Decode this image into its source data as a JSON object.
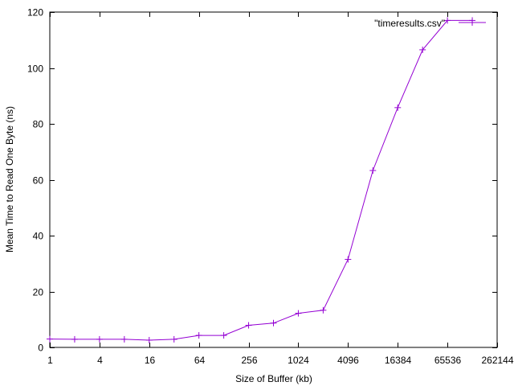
{
  "chart_data": {
    "type": "line",
    "title": "",
    "xlabel": "Size of Buffer (kb)",
    "ylabel": "Mean Time to Read One Byte (ns)",
    "xscale": "log2",
    "xlim": [
      1,
      262144
    ],
    "ylim": [
      0,
      120
    ],
    "grid": false,
    "legend_position": "top-right",
    "x_ticks": [
      1,
      4,
      16,
      64,
      256,
      1024,
      4096,
      16384,
      65536,
      262144
    ],
    "x_tick_labels": [
      "1",
      "4",
      "16",
      "64",
      "256",
      "1024",
      "4096",
      "16384",
      "65536",
      "262144"
    ],
    "y_ticks": [
      0,
      20,
      40,
      60,
      80,
      100,
      120
    ],
    "y_tick_labels": [
      "0",
      "20",
      "40",
      "60",
      "80",
      "100",
      "120"
    ],
    "series": [
      {
        "name": "\"timeresults.csv\"",
        "color": "#9400d3",
        "marker": "plus",
        "x": [
          1,
          2,
          4,
          8,
          16,
          32,
          64,
          128,
          256,
          512,
          1024,
          2048,
          4096,
          8192,
          16384,
          32768,
          65536,
          131072
        ],
        "y": [
          3.0,
          2.9,
          2.9,
          2.9,
          2.6,
          2.9,
          4.3,
          4.3,
          7.9,
          8.7,
          12.2,
          13.3,
          31.5,
          63.3,
          85.8,
          106.5,
          117.0,
          117.0
        ]
      }
    ]
  }
}
